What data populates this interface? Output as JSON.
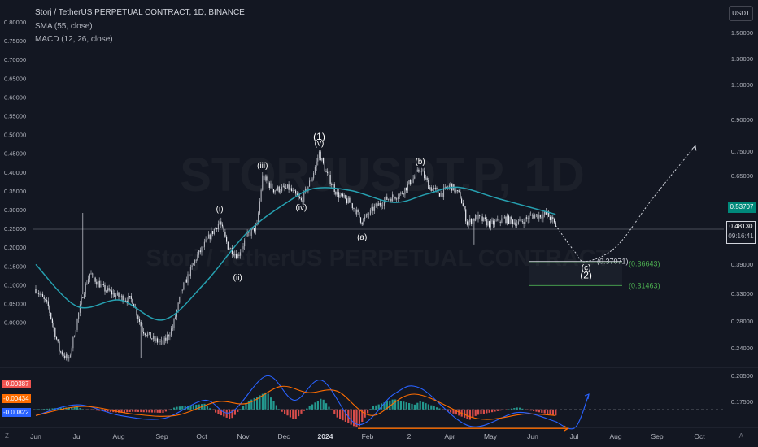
{
  "header": {
    "title": "Storj / TetherUS PERPETUAL CONTRACT, 1D, BINANCE",
    "sma_label": "SMA (55, close)",
    "macd_label": "MACD (12, 26, close)"
  },
  "currency_button": "USDT",
  "watermark": {
    "symbol": "STORJUSDT.P, 1D",
    "description": "Storj / TetherUS PERPETUAL CONTRACT"
  },
  "price_boxes": {
    "sma_value": "0.53707",
    "last_price": "0.48130",
    "countdown": "09:16:41"
  },
  "macd_badges": [
    "-0.00387",
    "-0.00434",
    "-0.00822"
  ],
  "bottom_left_label": "Z",
  "bottom_right_label": "A",
  "colors": {
    "background": "#131722",
    "sma": "#26a0b0",
    "macd_line": "#2962ff",
    "signal_line": "#ff6d00",
    "hist_pos": "#26a69a",
    "hist_neg": "#ef5350",
    "target_green": "#4caf50"
  },
  "chart_data": {
    "type": "candlestick",
    "title": "Storj / TetherUS PERPETUAL CONTRACT, 1D, BINANCE",
    "x_ticks": [
      "Jun",
      "Jul",
      "Aug",
      "Sep",
      "Oct",
      "Nov",
      "Dec",
      "2024",
      "Feb",
      "2",
      "Apr",
      "May",
      "Jun",
      "Jul",
      "Aug",
      "Sep",
      "Oct"
    ],
    "left_axis_ticks": [
      "0.80000",
      "0.75000",
      "0.70000",
      "0.65000",
      "0.60000",
      "0.55000",
      "0.50000",
      "0.45000",
      "0.40000",
      "0.35000",
      "0.30000",
      "0.25000",
      "0.20000",
      "0.15000",
      "0.10000",
      "0.05000",
      "0.00000"
    ],
    "right_axis_ticks": [
      "1.50000",
      "1.30000",
      "1.10000",
      "0.90000",
      "0.75000",
      "0.65000",
      "0.48130",
      "0.39000",
      "0.33000",
      "0.28000",
      "0.24000",
      "0.20500",
      "0.17500"
    ],
    "log_scale": true,
    "price_path": [
      [
        "2023-06-01",
        0.205
      ],
      [
        "2023-06-10",
        0.175
      ],
      [
        "2023-06-18",
        0.118
      ],
      [
        "2023-06-25",
        0.108
      ],
      [
        "2023-07-01",
        0.155
      ],
      [
        "2023-07-05",
        0.195
      ],
      [
        "2023-07-10",
        0.235
      ],
      [
        "2023-07-20",
        0.205
      ],
      [
        "2023-08-01",
        0.19
      ],
      [
        "2023-08-10",
        0.185
      ],
      [
        "2023-08-17",
        0.142
      ],
      [
        "2023-08-25",
        0.13
      ],
      [
        "2023-09-01",
        0.125
      ],
      [
        "2023-09-08",
        0.145
      ],
      [
        "2023-09-15",
        0.205
      ],
      [
        "2023-09-25",
        0.27
      ],
      [
        "2023-10-05",
        0.33
      ],
      [
        "2023-10-12",
        0.375
      ],
      [
        "2023-10-18",
        0.3
      ],
      [
        "2023-10-25",
        0.275
      ],
      [
        "2023-11-01",
        0.33
      ],
      [
        "2023-11-08",
        0.36
      ],
      [
        "2023-11-12",
        0.56
      ],
      [
        "2023-11-20",
        0.5
      ],
      [
        "2023-12-01",
        0.505
      ],
      [
        "2023-12-10",
        0.45
      ],
      [
        "2023-12-18",
        0.56
      ],
      [
        "2023-12-23",
        0.695
      ],
      [
        "2023-12-28",
        0.58
      ],
      [
        "2024-01-05",
        0.48
      ],
      [
        "2024-01-15",
        0.44
      ],
      [
        "2024-01-23",
        0.375
      ],
      [
        "2024-02-01",
        0.425
      ],
      [
        "2024-02-10",
        0.46
      ],
      [
        "2024-02-20",
        0.48
      ],
      [
        "2024-03-01",
        0.56
      ],
      [
        "2024-03-05",
        0.6
      ],
      [
        "2024-03-12",
        0.51
      ],
      [
        "2024-03-20",
        0.48
      ],
      [
        "2024-03-27",
        0.52
      ],
      [
        "2024-04-03",
        0.47
      ],
      [
        "2024-04-08",
        0.37
      ],
      [
        "2024-04-15",
        0.39
      ],
      [
        "2024-04-25",
        0.365
      ],
      [
        "2024-05-05",
        0.385
      ],
      [
        "2024-05-15",
        0.37
      ],
      [
        "2024-05-25",
        0.395
      ],
      [
        "2024-06-05",
        0.4
      ],
      [
        "2024-06-11",
        0.362
      ]
    ],
    "sma_55_path": [
      [
        "2023-06-01",
        0.255
      ],
      [
        "2023-07-01",
        0.175
      ],
      [
        "2023-08-01",
        0.185
      ],
      [
        "2023-09-01",
        0.155
      ],
      [
        "2023-10-01",
        0.215
      ],
      [
        "2023-11-01",
        0.34
      ],
      [
        "2023-12-01",
        0.45
      ],
      [
        "2023-12-20",
        0.505
      ],
      [
        "2024-01-15",
        0.495
      ],
      [
        "2024-02-15",
        0.445
      ],
      [
        "2024-03-10",
        0.48
      ],
      [
        "2024-04-01",
        0.51
      ],
      [
        "2024-05-01",
        0.46
      ],
      [
        "2024-06-11",
        0.4
      ]
    ],
    "projection_path": [
      [
        "2024-06-11",
        0.362
      ],
      [
        "2024-06-25",
        0.285
      ],
      [
        "2024-07-03",
        0.262
      ],
      [
        "2024-07-25",
        0.3
      ],
      [
        "2024-08-20",
        0.46
      ],
      [
        "2024-09-20",
        0.74
      ]
    ],
    "wave_labels": [
      {
        "text": "(1)",
        "date": "2023-12-23",
        "price": 0.78
      },
      {
        "text": "(v)",
        "date": "2023-12-23",
        "price": 0.74
      },
      {
        "text": "(iii)",
        "date": "2023-11-12",
        "price": 0.605
      },
      {
        "text": "(i)",
        "date": "2023-10-12",
        "price": 0.41
      },
      {
        "text": "(ii)",
        "date": "2023-10-25",
        "price": 0.222
      },
      {
        "text": "(iv)",
        "date": "2023-12-10",
        "price": 0.415
      },
      {
        "text": "(a)",
        "date": "2024-01-23",
        "price": 0.318
      },
      {
        "text": "(b)",
        "date": "2024-03-05",
        "price": 0.628
      },
      {
        "text": "(c)",
        "date": "2024-07-03",
        "price": 0.242
      },
      {
        "text": "(2)",
        "date": "2024-07-03",
        "price": 0.225
      }
    ],
    "targets": [
      {
        "label": "(0.37071)",
        "price": 0.262,
        "color": "#d1d4dc"
      },
      {
        "label": "(0.36643)",
        "price": 0.259,
        "color": "#4caf50"
      },
      {
        "label": "(0.31463)",
        "price": 0.211,
        "color": "#4caf50"
      }
    ],
    "macd": {
      "macd_path": [
        [
          "2023-06-01",
          -0.004
        ],
        [
          "2023-07-01",
          0.003
        ],
        [
          "2023-08-01",
          -0.004
        ],
        [
          "2023-09-01",
          -0.006
        ],
        [
          "2023-10-01",
          0.006
        ],
        [
          "2023-10-20",
          -0.002
        ],
        [
          "2023-11-15",
          0.022
        ],
        [
          "2023-12-05",
          0.006
        ],
        [
          "2023-12-25",
          0.019
        ],
        [
          "2024-01-20",
          -0.01
        ],
        [
          "2024-02-15",
          0.01
        ],
        [
          "2024-03-05",
          0.014
        ],
        [
          "2024-04-10",
          -0.011
        ],
        [
          "2024-05-15",
          -0.002
        ],
        [
          "2024-06-11",
          -0.008
        ],
        [
          "2024-06-25",
          -0.012
        ],
        [
          "2024-07-05",
          0.01
        ]
      ],
      "signal_path": [
        [
          "2023-06-01",
          -0.004
        ],
        [
          "2023-07-05",
          0.002
        ],
        [
          "2023-08-10",
          -0.003
        ],
        [
          "2023-09-10",
          -0.004
        ],
        [
          "2023-10-10",
          0.005
        ],
        [
          "2023-11-01",
          0.004
        ],
        [
          "2023-11-25",
          0.015
        ],
        [
          "2023-12-15",
          0.011
        ],
        [
          "2024-01-05",
          0.012
        ],
        [
          "2024-01-30",
          -0.004
        ],
        [
          "2024-03-01",
          0.01
        ],
        [
          "2024-04-15",
          -0.006
        ],
        [
          "2024-05-20",
          -0.003
        ],
        [
          "2024-06-11",
          -0.004
        ]
      ],
      "divergence": [
        [
          "2024-01-20",
          -0.0125
        ],
        [
          "2024-06-20",
          -0.0125
        ]
      ],
      "range": [
        -0.014,
        0.026
      ]
    }
  }
}
